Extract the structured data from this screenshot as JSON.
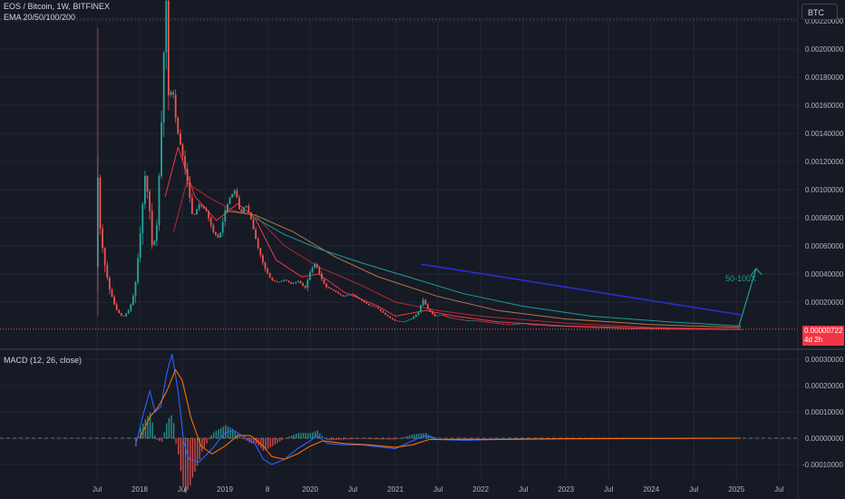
{
  "header": {
    "symbol_line": "EOS / Bitcoin, 1W, BITFINEX",
    "ema_line": "EMA 20/50/100/200",
    "macd_line": "MACD (12, 26, close)",
    "currency_button": "BTC"
  },
  "price_tag": {
    "price": "0.00000722",
    "countdown": "4d 2h"
  },
  "annotation": {
    "text": "50-100X"
  },
  "colors": {
    "background": "#161a25",
    "grid": "#232735",
    "candle_up": "#26a69a",
    "candle_down": "#ef5350",
    "ema20": "#f23645",
    "ema50": "#b22833",
    "ema100": "#b5763f",
    "ema200": "#1c9e93",
    "trendline": "#2a2ecd",
    "macd": "#2962ff",
    "signal": "#ff6d00",
    "price_tag": "#f23645"
  },
  "chart_data": [
    {
      "type": "candlestick",
      "title": "EOS / Bitcoin, 1W, BITFINEX",
      "ylim": [
        0,
        0.0024
      ],
      "y_ticks": [
        "0.00220000",
        "0.00200000",
        "0.00180000",
        "0.00160000",
        "0.00140000",
        "0.00120000",
        "0.00100000",
        "0.00080000",
        "0.00060000",
        "0.00040000",
        "0.00020000"
      ],
      "x_ticks": [
        "Jul",
        "2018",
        "Jul",
        "2019",
        "8",
        "2020",
        "Jul",
        "2021",
        "Jul",
        "2022",
        "Jul",
        "2023",
        "Jul",
        "2024",
        "Jul",
        "2025",
        "Jul"
      ],
      "price_path": [
        [
          2017.5,
          0.00045
        ],
        [
          2017.52,
          0.0012
        ],
        [
          2017.55,
          0.00075
        ],
        [
          2017.6,
          0.0005
        ],
        [
          2017.66,
          0.0003
        ],
        [
          2017.74,
          0.00015
        ],
        [
          2017.82,
          9e-05
        ],
        [
          2017.9,
          0.00015
        ],
        [
          2017.96,
          0.00028
        ],
        [
          2018.02,
          0.00065
        ],
        [
          2018.08,
          0.0011
        ],
        [
          2018.13,
          0.0009
        ],
        [
          2018.17,
          0.00055
        ],
        [
          2018.22,
          0.00075
        ],
        [
          2018.27,
          0.0014
        ],
        [
          2018.3,
          0.00195
        ],
        [
          2018.33,
          0.00235
        ],
        [
          2018.36,
          0.0016
        ],
        [
          2018.4,
          0.00175
        ],
        [
          2018.45,
          0.00145
        ],
        [
          2018.52,
          0.00125
        ],
        [
          2018.58,
          0.00105
        ],
        [
          2018.64,
          0.0008
        ],
        [
          2018.72,
          0.0009
        ],
        [
          2018.8,
          0.00085
        ],
        [
          2018.88,
          0.0007
        ],
        [
          2018.95,
          0.00065
        ],
        [
          2019.02,
          0.00085
        ],
        [
          2019.08,
          0.00095
        ],
        [
          2019.14,
          0.001
        ],
        [
          2019.2,
          0.00082
        ],
        [
          2019.26,
          0.0009
        ],
        [
          2019.32,
          0.0008
        ],
        [
          2019.4,
          0.0006
        ],
        [
          2019.48,
          0.00045
        ],
        [
          2019.56,
          0.00036
        ],
        [
          2019.64,
          0.00034
        ],
        [
          2019.72,
          0.00036
        ],
        [
          2019.8,
          0.00033
        ],
        [
          2019.88,
          0.00035
        ],
        [
          2019.96,
          0.0003
        ],
        [
          2020.02,
          0.00042
        ],
        [
          2020.08,
          0.00048
        ],
        [
          2020.14,
          0.00038
        ],
        [
          2020.2,
          0.00031
        ],
        [
          2020.3,
          0.00028
        ],
        [
          2020.4,
          0.00024
        ],
        [
          2020.5,
          0.00026
        ],
        [
          2020.6,
          0.00022
        ],
        [
          2020.7,
          0.00018
        ],
        [
          2020.8,
          0.00016
        ],
        [
          2020.9,
          0.00011
        ],
        [
          2021.0,
          7e-05
        ],
        [
          2021.1,
          6e-05
        ],
        [
          2021.2,
          8e-05
        ],
        [
          2021.28,
          0.00012
        ],
        [
          2021.34,
          0.00022
        ],
        [
          2021.4,
          0.00015
        ],
        [
          2021.48,
          0.0001
        ],
        [
          2021.56,
          0.00011
        ],
        [
          2021.64,
          9e-05
        ],
        [
          2021.74,
          8e-05
        ],
        [
          2021.84,
          7e-05
        ],
        [
          2021.94,
          7e-05
        ],
        [
          2022.06,
          6e-05
        ],
        [
          2022.2,
          5e-05
        ],
        [
          2022.36,
          4e-05
        ],
        [
          2022.5,
          5e-05
        ],
        [
          2022.6,
          4e-05
        ],
        [
          2022.7,
          4e-05
        ],
        [
          2022.85,
          3e-05
        ],
        [
          2023.0,
          3e-05
        ],
        [
          2023.2,
          2.5e-05
        ],
        [
          2023.4,
          2e-05
        ],
        [
          2023.6,
          1.5e-05
        ],
        [
          2023.8,
          1.3e-05
        ],
        [
          2024.0,
          1.2e-05
        ],
        [
          2024.2,
          1.1e-05
        ],
        [
          2024.4,
          1e-05
        ],
        [
          2024.6,
          9e-06
        ],
        [
          2024.8,
          8e-06
        ],
        [
          2024.95,
          7.5e-06
        ],
        [
          2025.05,
          7.22e-06
        ]
      ],
      "ema_paths": [
        {
          "name": "EMA 20",
          "points": [
            [
              2018.3,
              0.00095
            ],
            [
              2018.45,
              0.0013
            ],
            [
              2018.65,
              0.00095
            ],
            [
              2018.9,
              0.00078
            ],
            [
              2019.15,
              0.0009
            ],
            [
              2019.35,
              0.0008
            ],
            [
              2019.6,
              0.0005
            ],
            [
              2019.9,
              0.00038
            ],
            [
              2020.1,
              0.0004
            ],
            [
              2020.4,
              0.00027
            ],
            [
              2020.8,
              0.00017
            ],
            [
              2021.0,
              0.0001
            ],
            [
              2021.35,
              0.00014
            ],
            [
              2021.7,
              0.0001
            ],
            [
              2022.2,
              6e-05
            ],
            [
              2023.0,
              3e-05
            ],
            [
              2024.0,
              1.4e-05
            ],
            [
              2025.05,
              8e-06
            ]
          ]
        },
        {
          "name": "EMA 50",
          "points": [
            [
              2018.4,
              0.0007
            ],
            [
              2018.55,
              0.00105
            ],
            [
              2018.8,
              0.00095
            ],
            [
              2019.1,
              0.00085
            ],
            [
              2019.35,
              0.00082
            ],
            [
              2019.7,
              0.0006
            ],
            [
              2020.1,
              0.00045
            ],
            [
              2020.6,
              0.00032
            ],
            [
              2021.0,
              0.0002
            ],
            [
              2021.5,
              0.00014
            ],
            [
              2022.0,
              0.0001
            ],
            [
              2023.0,
              5e-05
            ],
            [
              2024.0,
              2e-05
            ],
            [
              2025.05,
              1e-05
            ]
          ]
        },
        {
          "name": "EMA 100",
          "points": [
            [
              2019.0,
              0.00085
            ],
            [
              2019.35,
              0.00082
            ],
            [
              2019.8,
              0.0007
            ],
            [
              2020.3,
              0.00052
            ],
            [
              2020.8,
              0.00038
            ],
            [
              2021.5,
              0.00024
            ],
            [
              2022.2,
              0.00014
            ],
            [
              2023.0,
              8e-05
            ],
            [
              2024.0,
              4e-05
            ],
            [
              2025.05,
              2e-05
            ]
          ]
        },
        {
          "name": "EMA 200",
          "points": [
            [
              2019.35,
              0.0008
            ],
            [
              2019.7,
              0.00068
            ],
            [
              2020.1,
              0.00058
            ],
            [
              2020.6,
              0.00048
            ],
            [
              2021.2,
              0.00037
            ],
            [
              2021.8,
              0.00026
            ],
            [
              2022.5,
              0.00017
            ],
            [
              2023.3,
              0.0001
            ],
            [
              2024.2,
              6e-05
            ],
            [
              2025.05,
              3e-05
            ]
          ]
        }
      ],
      "trendline": [
        [
          2021.3,
          0.00047
        ],
        [
          2025.05,
          0.00011
        ]
      ],
      "arrow_annotation": {
        "text": "50-100X",
        "from": [
          2025.05,
          3e-05
        ],
        "to": [
          2025.2,
          0.00044
        ]
      }
    },
    {
      "type": "macd",
      "title": "MACD (12, 26, close)",
      "ylim": [
        -0.00012,
        0.00032
      ],
      "y_ticks": [
        "0.00030000",
        "0.00020000",
        "0.00010000",
        "0.00000000",
        "-0.00010000"
      ],
      "macd": [
        [
          2017.95,
          -3e-05
        ],
        [
          2018.05,
          0.0001
        ],
        [
          2018.12,
          0.00018
        ],
        [
          2018.18,
          0.0001
        ],
        [
          2018.25,
          0.00012
        ],
        [
          2018.32,
          0.00025
        ],
        [
          2018.38,
          0.00032
        ],
        [
          2018.45,
          0.00018
        ],
        [
          2018.52,
          -2e-05
        ],
        [
          2018.58,
          -8e-05
        ],
        [
          2018.7,
          -9e-05
        ],
        [
          2018.85,
          -4e-05
        ],
        [
          2019.0,
          2e-05
        ],
        [
          2019.1,
          3e-05
        ],
        [
          2019.2,
          1e-05
        ],
        [
          2019.35,
          -2e-05
        ],
        [
          2019.45,
          -8e-05
        ],
        [
          2019.55,
          -0.0001
        ],
        [
          2019.7,
          -8e-05
        ],
        [
          2019.85,
          -4e-05
        ],
        [
          2020.0,
          -1e-05
        ],
        [
          2020.08,
          1e-05
        ],
        [
          2020.2,
          -2e-05
        ],
        [
          2020.4,
          -2.5e-05
        ],
        [
          2020.6,
          -2.5e-05
        ],
        [
          2020.85,
          -3.5e-05
        ],
        [
          2021.0,
          -4e-05
        ],
        [
          2021.2,
          -1e-05
        ],
        [
          2021.35,
          1e-05
        ],
        [
          2021.5,
          -5e-06
        ],
        [
          2021.8,
          -8e-06
        ],
        [
          2022.2,
          -5e-06
        ],
        [
          2023.0,
          -2e-06
        ],
        [
          2024.0,
          -1e-06
        ],
        [
          2025.05,
          0.0
        ]
      ],
      "signal": [
        [
          2018.0,
          0.0
        ],
        [
          2018.12,
          8e-05
        ],
        [
          2018.22,
          0.00012
        ],
        [
          2018.32,
          0.00018
        ],
        [
          2018.42,
          0.00026
        ],
        [
          2018.5,
          0.00022
        ],
        [
          2018.6,
          8e-05
        ],
        [
          2018.72,
          -3e-05
        ],
        [
          2018.85,
          -6e-05
        ],
        [
          2019.0,
          -3e-05
        ],
        [
          2019.15,
          1e-05
        ],
        [
          2019.3,
          1e-05
        ],
        [
          2019.45,
          -3e-05
        ],
        [
          2019.55,
          -7e-05
        ],
        [
          2019.7,
          -8e-05
        ],
        [
          2019.85,
          -6e-05
        ],
        [
          2020.0,
          -3e-05
        ],
        [
          2020.15,
          -1e-05
        ],
        [
          2020.4,
          -2e-05
        ],
        [
          2020.7,
          -2.5e-05
        ],
        [
          2021.0,
          -3.5e-05
        ],
        [
          2021.2,
          -2.5e-05
        ],
        [
          2021.4,
          -5e-06
        ],
        [
          2021.7,
          -5e-06
        ],
        [
          2022.2,
          -5e-06
        ],
        [
          2023.0,
          -2e-06
        ],
        [
          2024.0,
          -1e-06
        ],
        [
          2025.05,
          0.0
        ]
      ]
    }
  ]
}
